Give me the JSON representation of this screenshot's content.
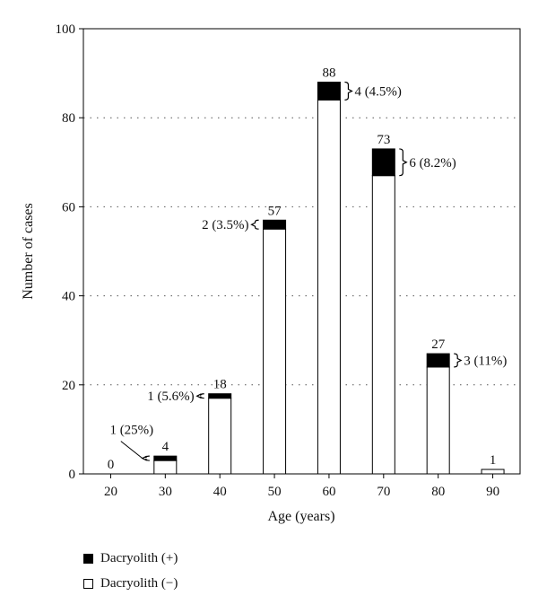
{
  "chart_data": {
    "type": "bar",
    "stacked": true,
    "xlabel": "Age (years)",
    "ylabel": "Number of cases",
    "ylim": [
      0,
      100
    ],
    "yticks": [
      0,
      20,
      40,
      60,
      80,
      100
    ],
    "grid": "horizontal dotted",
    "categories": [
      "20",
      "30",
      "40",
      "50",
      "60",
      "70",
      "80",
      "90"
    ],
    "series": [
      {
        "name": "Dacryolith (−)",
        "color": "#ffffff",
        "values": [
          0,
          3,
          17,
          55,
          84,
          67,
          24,
          1
        ]
      },
      {
        "name": "Dacryolith (+)",
        "color": "#000000",
        "values": [
          0,
          1,
          1,
          2,
          4,
          6,
          3,
          0
        ]
      }
    ],
    "totals": [
      "0",
      "4",
      "18",
      "57",
      "88",
      "73",
      "27",
      "1"
    ],
    "annotations": [
      {
        "category": "30",
        "text": "1 (25%)",
        "side": "left-leader"
      },
      {
        "category": "40",
        "text": "1 (5.6%)",
        "side": "left"
      },
      {
        "category": "50",
        "text": "2 (3.5%)",
        "side": "left"
      },
      {
        "category": "60",
        "text": "4 (4.5%)",
        "side": "right"
      },
      {
        "category": "70",
        "text": "6 (8.2%)",
        "side": "right"
      },
      {
        "category": "80",
        "text": "3 (11%)",
        "side": "right"
      }
    ],
    "legend": [
      {
        "label": "Dacryolith (+)",
        "color": "#000000"
      },
      {
        "label": "Dacryolith (−)",
        "color": "#ffffff"
      }
    ],
    "legend_position": "bottom-left"
  }
}
